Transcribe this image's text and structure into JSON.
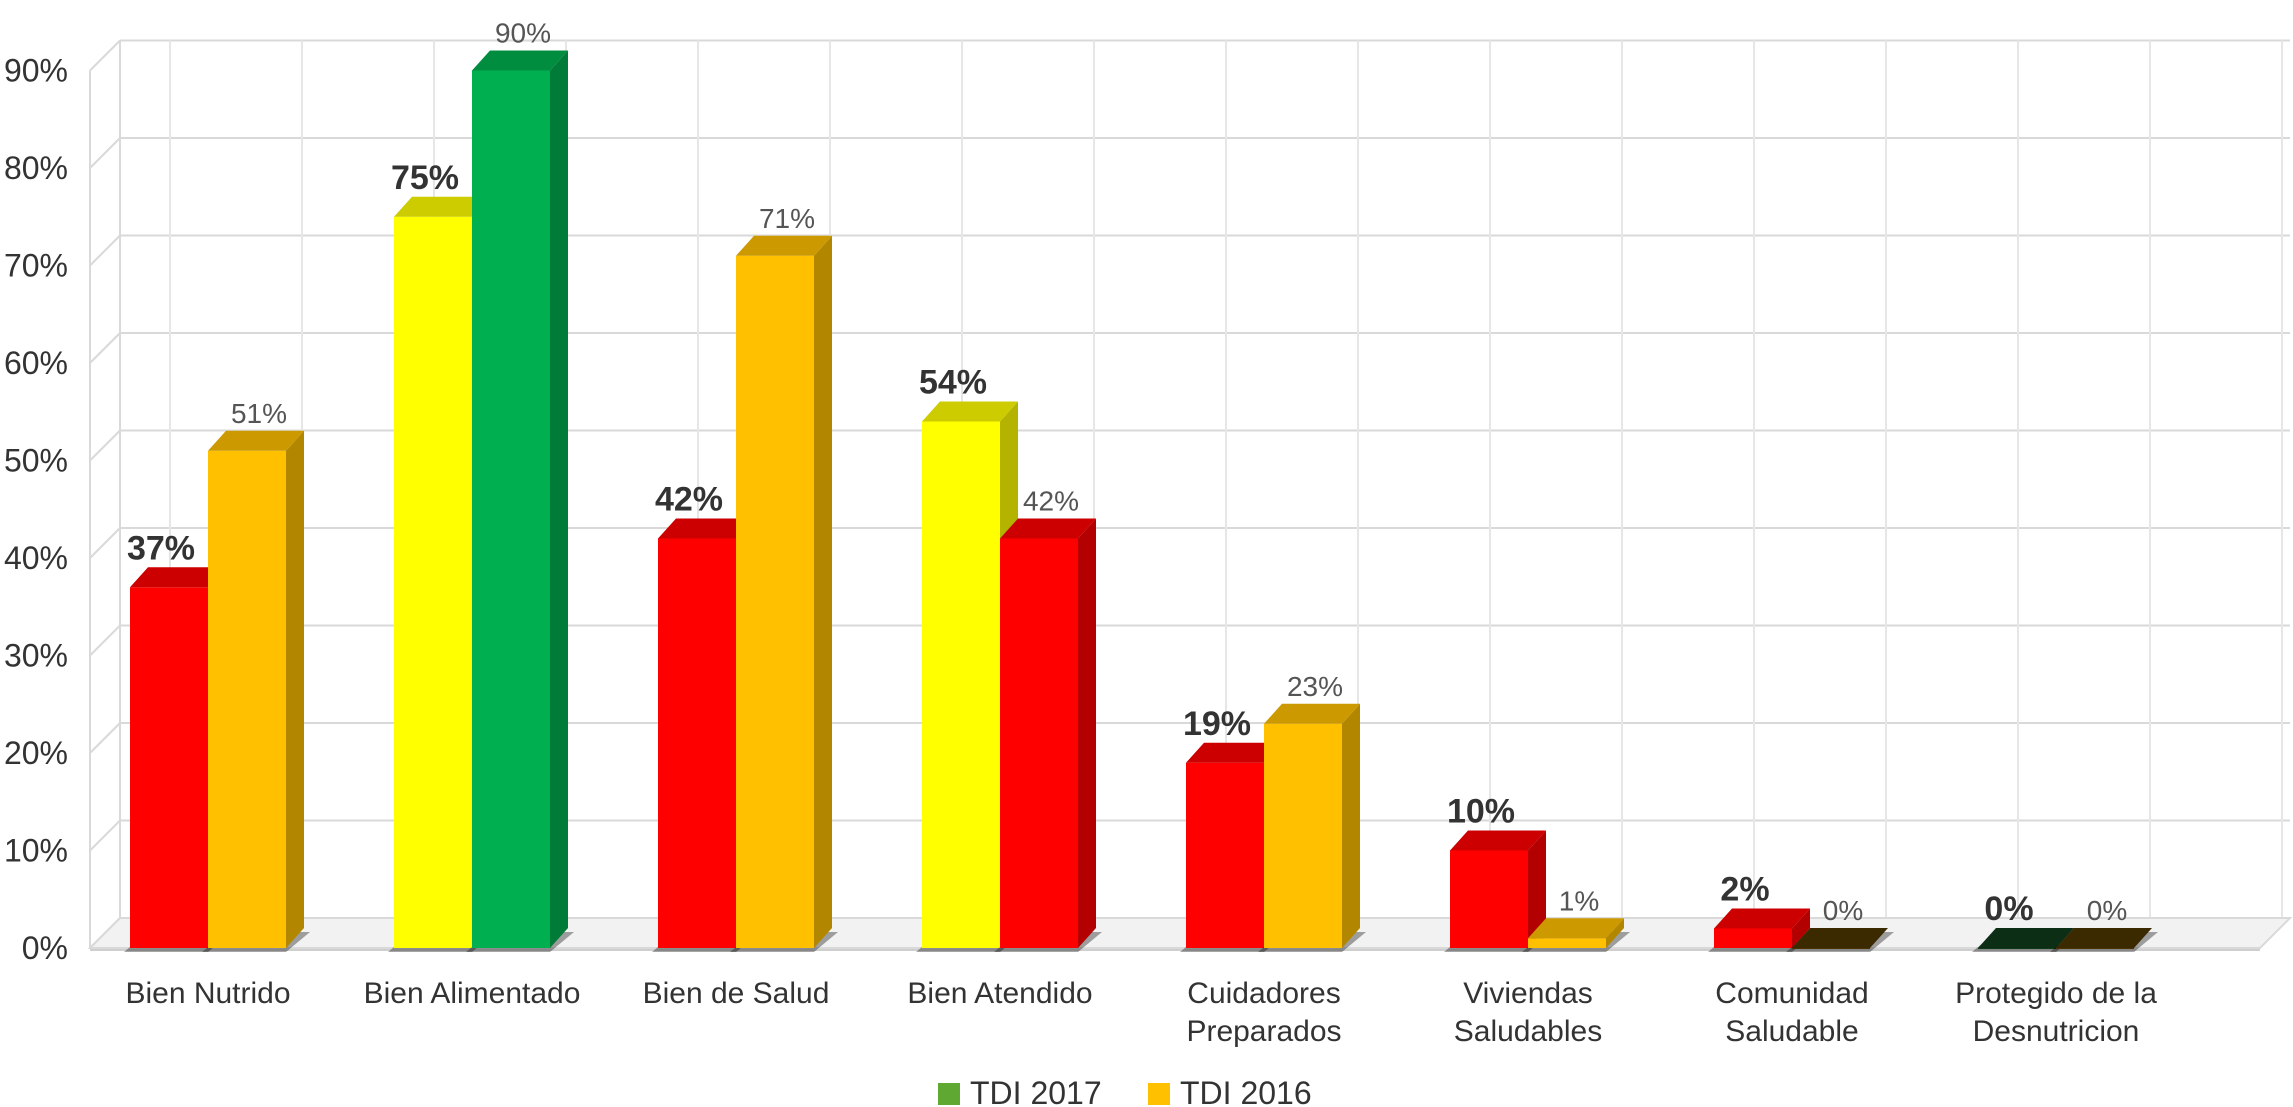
{
  "chart_data": {
    "type": "bar",
    "categories": [
      [
        "Bien Nutrido"
      ],
      [
        "Bien Alimentado"
      ],
      [
        "Bien de Salud"
      ],
      [
        "Bien Atendido"
      ],
      [
        "Cuidadores",
        "Preparados"
      ],
      [
        "Viviendas",
        "Saludables"
      ],
      [
        "Comunidad",
        "Saludable"
      ],
      [
        "Protegido de la",
        "Desnutricion"
      ]
    ],
    "series": [
      {
        "values": [
          37,
          75,
          42,
          54,
          19,
          10,
          2,
          0
        ],
        "labels": [
          "37%",
          "75%",
          "42%",
          "54%",
          "19%",
          "10%",
          "2%",
          "0%"
        ],
        "colors": [
          "#ff0000",
          "#ffff00",
          "#ff0000",
          "#ffff00",
          "#ff0000",
          "#ff0000",
          "#ff0000",
          "#0f3a1a"
        ],
        "label_style": "bold"
      },
      {
        "values": [
          51,
          90,
          71,
          42,
          23,
          1,
          0,
          0
        ],
        "labels": [
          "51%",
          "90%",
          "71%",
          "42%",
          "23%",
          "1%",
          "0%",
          "0%"
        ],
        "colors": [
          "#ffc000",
          "#00b050",
          "#ffc000",
          "#ff0000",
          "#ffc000",
          "#ffc000",
          "#4a3300",
          "#4a3300"
        ],
        "label_style": "light"
      }
    ],
    "yticks": [
      "0%",
      "10%",
      "20%",
      "30%",
      "40%",
      "50%",
      "60%",
      "70%",
      "80%",
      "90%"
    ],
    "ylim": [
      0,
      90
    ],
    "grid": true,
    "legend_position": "bottom",
    "legend": [
      {
        "name": "TDI 2017",
        "color": "#5fa832"
      },
      {
        "name": "TDI 2016",
        "color": "#ffc000"
      }
    ]
  }
}
